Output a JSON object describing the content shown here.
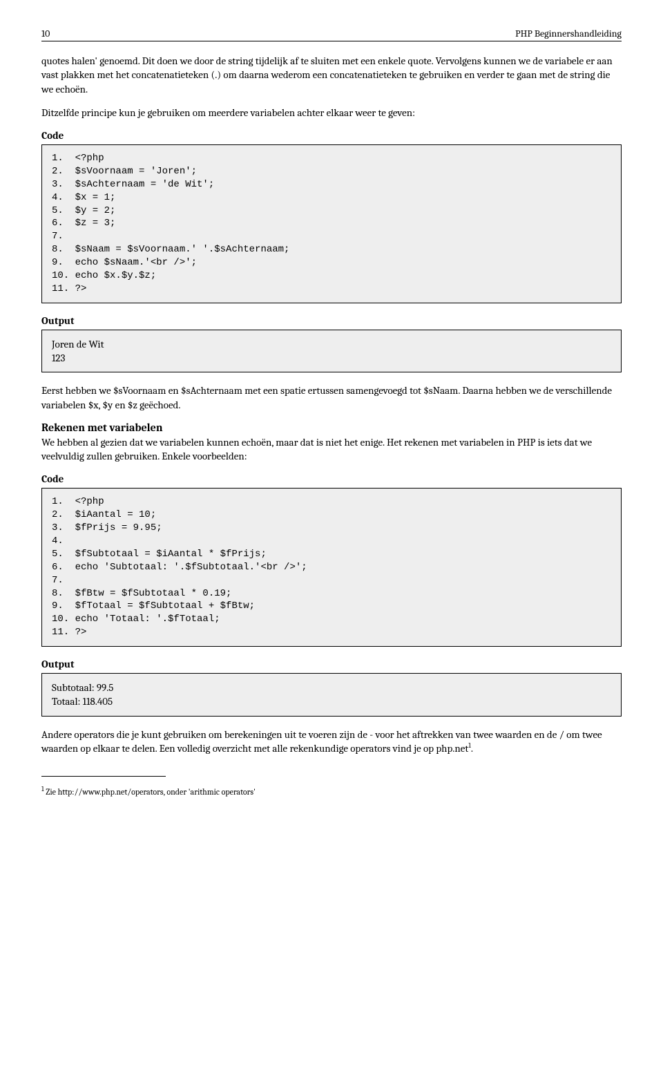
{
  "header": {
    "page_number": "10",
    "doc_title": "PHP Beginnershandleiding"
  },
  "para1": "quotes halen' genoemd. Dit doen we door de string tijdelijk af te sluiten met een enkele quote. Vervolgens kunnen we de variabele er aan vast plakken met het concatenatieteken (.) om daarna wederom een concatenatieteken te gebruiken en verder te gaan met de string die we echoën.",
  "para2": "Ditzelfde principe kun je gebruiken om meerdere variabelen achter elkaar weer te geven:",
  "labels": {
    "code": "Code",
    "output": "Output"
  },
  "code1": "1.  <?php\n2.  $sVoornaam = 'Joren';\n3.  $sAchternaam = 'de Wit';\n4.  $x = 1;\n5.  $y = 2;\n6.  $z = 3;\n7.\n8.  $sNaam = $sVoornaam.' '.$sAchternaam;\n9.  echo $sNaam.'<br />';\n10. echo $x.$y.$z;\n11. ?>",
  "output1_line1": "Joren de Wit",
  "output1_line2": "123",
  "para3": "Eerst hebben we $sVoornaam en $sAchternaam met een spatie ertussen samengevoegd tot $sNaam. Daarna hebben we de verschillende variabelen $x, $y en $z geëchoed.",
  "heading2": "Rekenen met variabelen",
  "para4": "We hebben al gezien dat we variabelen kunnen echoën, maar dat is niet het enige. Het rekenen met variabelen in PHP is iets dat we veelvuldig zullen gebruiken. Enkele voorbeelden:",
  "code2": "1.  <?php\n2.  $iAantal = 10;\n3.  $fPrijs = 9.95;\n4.\n5.  $fSubtotaal = $iAantal * $fPrijs;\n6.  echo 'Subtotaal: '.$fSubtotaal.'<br />';\n7.\n8.  $fBtw = $fSubtotaal * 0.19;\n9.  $fTotaal = $fSubtotaal + $fBtw;\n10. echo 'Totaal: '.$fTotaal;\n11. ?>",
  "output2_line1": "Subtotaal: 99.5",
  "output2_line2": "Totaal: 118.405",
  "para5_part1": "Andere operators die je kunt gebruiken om berekeningen uit te voeren zijn de - voor het aftrekken van twee waarden en de / om twee waarden op elkaar te delen. Een volledig overzicht met alle rekenkundige operators vind je op php.net",
  "para5_sup": "1",
  "para5_part2": ".",
  "footnote_num": "1",
  "footnote_text": " Zie http://www.php.net/operators, onder 'arithmic operators'"
}
